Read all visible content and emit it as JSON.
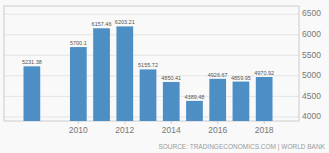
{
  "chart_data": {
    "type": "bar",
    "x": [
      2008,
      2010,
      2011,
      2012,
      2013,
      2014,
      2015,
      2016,
      2017,
      2018
    ],
    "values": [
      5231.38,
      5700.1,
      6157.46,
      6203.21,
      5155.72,
      4850.41,
      4389.48,
      4926.67,
      4859.95,
      4970.92
    ],
    "color": "#4d8fc5",
    "xlim": [
      2006.8,
      2019.5
    ],
    "xticks": [
      2010,
      2012,
      2014,
      2016,
      2018
    ],
    "ylim": [
      3900,
      6700
    ],
    "yticks": [
      4000,
      4500,
      5000,
      5500,
      6000,
      6500
    ],
    "grid": true,
    "data_labels": true,
    "annotation": "SOURCE: TRADINGECONOMICS.COM | WORLD BANK"
  }
}
